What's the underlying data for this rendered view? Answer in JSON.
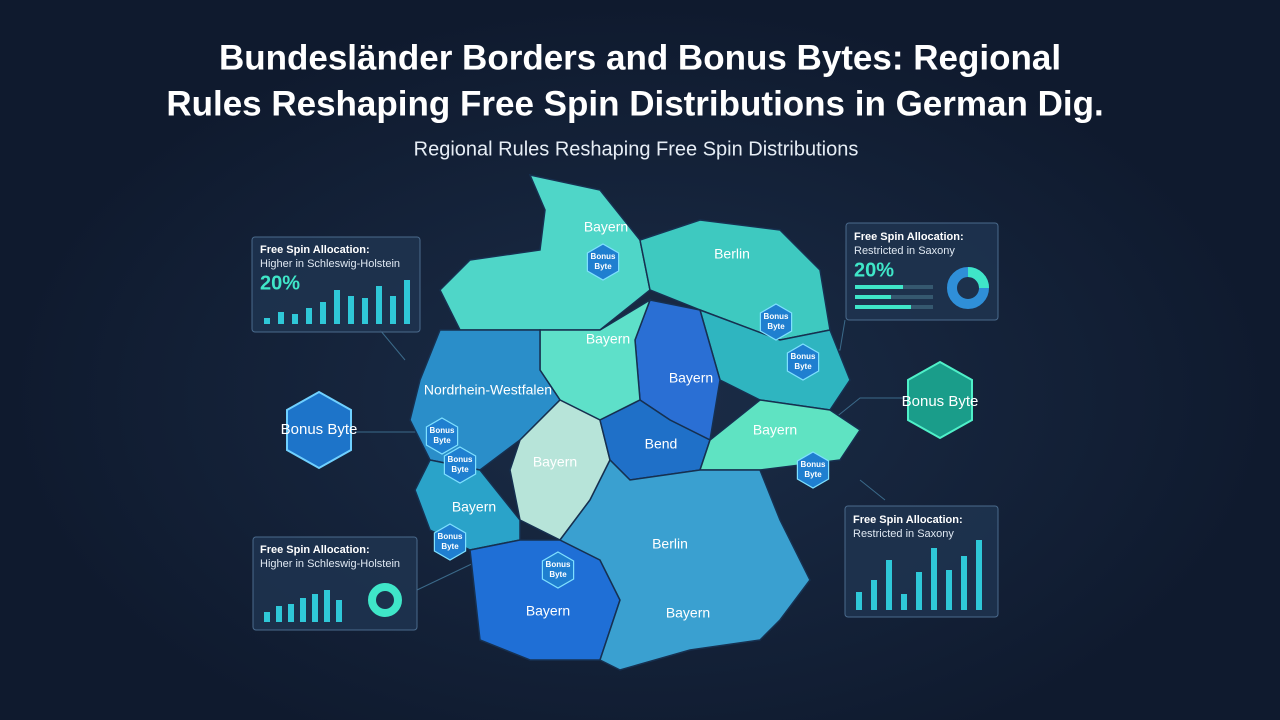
{
  "header": {
    "title_lines": [
      "Bundesländer Borders and Bonus Bytes: Regional",
      "Rules Reshaping Free Spin Distributions in German Dig."
    ],
    "subtitle": "Regional Rules Reshaping Free Spin Distributions"
  },
  "map": {
    "region_labels": [
      "Bayern",
      "Berlin",
      "Bayern",
      "Bayern",
      "Nordrhein-Westfalen",
      "Bayern",
      "Bend",
      "Bayern",
      "Bayern",
      "Berlin",
      "Bayern",
      "Bayern"
    ],
    "badges": [
      "Bonus Byte",
      "Bonus Byte",
      "Bonus Byte",
      "Bonus Byte",
      "Bonus Byte",
      "Bonus Byte",
      "Bonus Byte",
      "Bonus Byte"
    ],
    "side_badges": [
      "Bonus Byte",
      "Bonus Byte"
    ]
  },
  "panels": [
    {
      "title": "Free Spin Allocation:",
      "subtitle": "Higher in Schleswig-Holstein",
      "value": "20%"
    },
    {
      "title": "Free Spin Allocation:",
      "subtitle": "Restricted in Saxony",
      "value": "20%"
    },
    {
      "title": "Free Spin Allocation:",
      "subtitle": "Higher in Schleswig-Holstein"
    },
    {
      "title": "Free Spin Allocation:",
      "subtitle": "Restricted in Saxony"
    }
  ]
}
